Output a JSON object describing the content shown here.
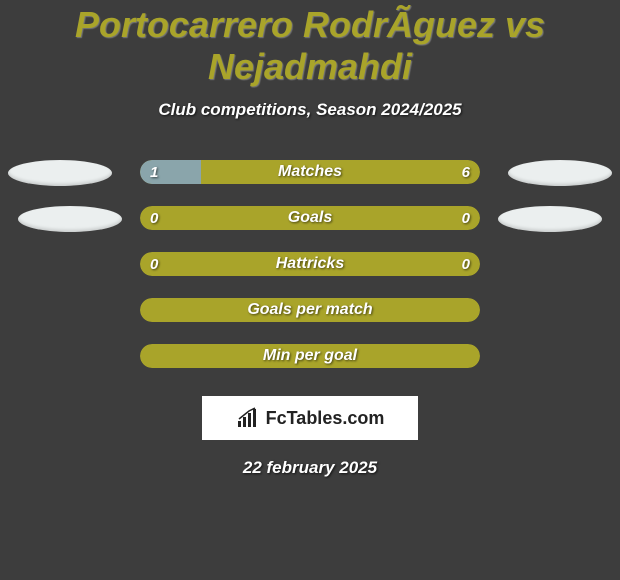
{
  "background_color": "#3d3d3d",
  "title": {
    "text": "Portocarrero RodrÃ­guez vs Nejadmahdi",
    "color": "#a9a42a",
    "fontsize": 36
  },
  "subtitle": "Club competitions, Season 2024/2025",
  "accent_color": "#a9a42a",
  "secondary_color": "#8aa5ab",
  "stats": [
    {
      "label": "Matches",
      "left_val": "1",
      "right_val": "6",
      "left_pct": 18,
      "left_color": "#8aa5ab",
      "right_color": "#a9a42a"
    },
    {
      "label": "Goals",
      "left_val": "0",
      "right_val": "0",
      "left_pct": 0,
      "left_color": "#8aa5ab",
      "right_color": "#a9a42a"
    },
    {
      "label": "Hattricks",
      "left_val": "0",
      "right_val": "0",
      "left_pct": 0,
      "left_color": "#8aa5ab",
      "right_color": "#a9a42a"
    },
    {
      "label": "Goals per match",
      "left_val": "",
      "right_val": "",
      "left_pct": 0,
      "left_color": "#8aa5ab",
      "right_color": "#a9a42a"
    },
    {
      "label": "Min per goal",
      "left_val": "",
      "right_val": "",
      "left_pct": 0,
      "left_color": "#8aa5ab",
      "right_color": "#a9a42a"
    }
  ],
  "logo_text": "FcTables.com",
  "date": "22 february 2025",
  "ellipse_color": "#ebefef"
}
